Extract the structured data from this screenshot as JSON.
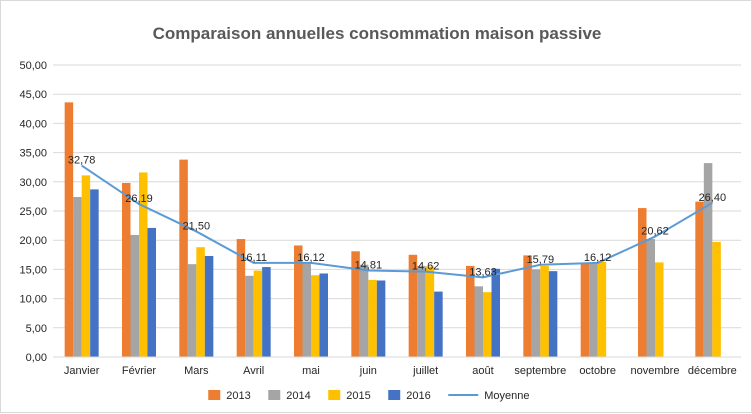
{
  "chart_data": {
    "type": "bar",
    "title": "Comparaison annuelles consommation maison passive",
    "xlabel": "",
    "ylabel": "",
    "ylim": [
      0,
      50
    ],
    "yticks": [
      "0,00",
      "5,00",
      "10,00",
      "15,00",
      "20,00",
      "25,00",
      "30,00",
      "35,00",
      "40,00",
      "45,00",
      "50,00"
    ],
    "grid": true,
    "legend_position": "bottom",
    "categories": [
      "Janvier",
      "Février",
      "Mars",
      "Avril",
      "mai",
      "juin",
      "juillet",
      "août",
      "septembre",
      "octobre",
      "novembre",
      "décembre"
    ],
    "series": [
      {
        "name": "2013",
        "type": "bar",
        "color": "#ed7d31",
        "values": [
          43.6,
          29.8,
          33.8,
          20.2,
          19.1,
          18.1,
          17.5,
          15.6,
          17.4,
          16.0,
          25.5,
          26.6
        ]
      },
      {
        "name": "2014",
        "type": "bar",
        "color": "#a5a5a5",
        "values": [
          27.4,
          20.9,
          15.9,
          13.9,
          16.2,
          15.8,
          15.6,
          12.1,
          15.0,
          16.0,
          20.2,
          33.2
        ]
      },
      {
        "name": "2015",
        "type": "bar",
        "color": "#ffc000",
        "values": [
          31.1,
          31.6,
          18.8,
          14.8,
          14.0,
          13.2,
          15.5,
          11.1,
          15.6,
          16.3,
          16.2,
          19.7
        ]
      },
      {
        "name": "2016",
        "type": "bar",
        "color": "#4472c4",
        "values": [
          28.7,
          22.1,
          17.3,
          15.4,
          14.3,
          13.1,
          11.2,
          15.1,
          14.7,
          null,
          null,
          null
        ]
      },
      {
        "name": "Moyenne",
        "type": "line",
        "color": "#5b9bd5",
        "values": [
          32.78,
          26.19,
          21.5,
          16.11,
          16.12,
          14.81,
          14.62,
          13.63,
          15.79,
          16.12,
          20.62,
          26.4
        ],
        "labels": [
          "32,78",
          "26,19",
          "21,50",
          "16,11",
          "16,12",
          "14,81",
          "14,62",
          "13,63",
          "15,79",
          "16,12",
          "20,62",
          "26,40"
        ]
      }
    ]
  }
}
